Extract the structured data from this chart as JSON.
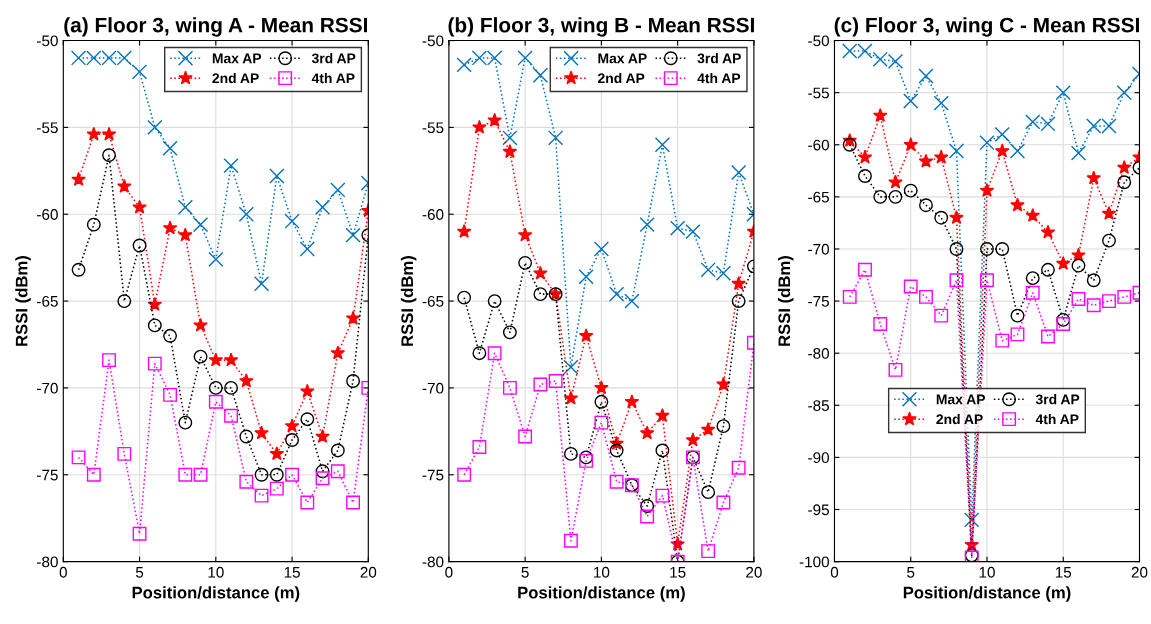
{
  "chart_data": [
    {
      "type": "line",
      "title": "(a) Floor 3, wing A - Mean RSSI",
      "xlabel": "Position/distance (m)",
      "ylabel": "RSSI (dBm)",
      "x": [
        1,
        2,
        3,
        4,
        5,
        6,
        7,
        8,
        9,
        10,
        11,
        12,
        13,
        14,
        15,
        16,
        17,
        18,
        19,
        20
      ],
      "xlim": [
        0,
        20
      ],
      "xticks": [
        0,
        5,
        10,
        15,
        20
      ],
      "ylim": [
        -80,
        -50
      ],
      "yticks": [
        -80,
        -75,
        -70,
        -65,
        -60,
        -55,
        -50
      ],
      "grid": true,
      "legend": "top right",
      "line_style": "dotted",
      "series": [
        {
          "name": "Max AP",
          "color": "#0072bd",
          "marker": "cross",
          "values": [
            -51,
            -51,
            -51,
            -51,
            -51.8,
            -55,
            -56.2,
            -59.6,
            -60.6,
            -62.6,
            -57.2,
            -60,
            -64,
            -57.8,
            -60.4,
            -62,
            -59.6,
            -58.6,
            -61.2,
            -58.2
          ]
        },
        {
          "name": "2nd AP",
          "color": "#ff0000",
          "marker": "star",
          "values": [
            -58,
            -55.4,
            -55.4,
            -58.4,
            -59.6,
            -65.2,
            -60.8,
            -61.2,
            -66.4,
            -68.4,
            -68.4,
            -69.6,
            -72.6,
            -73.8,
            -72.2,
            -70.2,
            -72.8,
            -68,
            -66,
            -59.8
          ]
        },
        {
          "name": "3rd AP",
          "color": "#000000",
          "marker": "circle",
          "values": [
            -63.2,
            -60.6,
            -56.6,
            -65,
            -61.8,
            -66.4,
            -67,
            -72,
            -68.2,
            -70,
            -70,
            -72.8,
            -75,
            -75,
            -73,
            -71.8,
            -74.8,
            -73.6,
            -69.6,
            -61.2
          ]
        },
        {
          "name": "4th AP",
          "color": "#ff00ff",
          "marker": "square",
          "values": [
            -74,
            -75,
            -68.4,
            -73.8,
            -78.4,
            -68.6,
            -70.4,
            -75,
            -75,
            -70.8,
            -71.6,
            -75.4,
            -76.2,
            -75.8,
            -75,
            -76.6,
            -75.2,
            -74.8,
            -76.6,
            -70
          ]
        }
      ]
    },
    {
      "type": "line",
      "title": "(b) Floor 3, wing B - Mean RSSI",
      "xlabel": "Position/distance (m)",
      "ylabel": "RSSI (dBm)",
      "x": [
        1,
        2,
        3,
        4,
        5,
        6,
        7,
        8,
        9,
        10,
        11,
        12,
        13,
        14,
        15,
        16,
        17,
        18,
        19,
        20
      ],
      "xlim": [
        0,
        20
      ],
      "xticks": [
        0,
        5,
        10,
        15,
        20
      ],
      "ylim": [
        -80,
        -50
      ],
      "yticks": [
        -80,
        -75,
        -70,
        -65,
        -60,
        -55,
        -50
      ],
      "grid": true,
      "legend": "top right",
      "line_style": "dotted",
      "series": [
        {
          "name": "Max AP",
          "color": "#0072bd",
          "marker": "cross",
          "values": [
            -51.4,
            -51,
            -51,
            -55.6,
            -51,
            -52,
            -55.6,
            -68.8,
            -63.6,
            -62,
            -64.6,
            -65,
            -60.6,
            -56,
            -60.8,
            -61,
            -63.2,
            -63.4,
            -57.6,
            -60
          ]
        },
        {
          "name": "2nd AP",
          "color": "#ff0000",
          "marker": "star",
          "values": [
            -61,
            -55,
            -54.6,
            -56.4,
            -61.2,
            -63.4,
            -64.6,
            -70.6,
            -67,
            -70,
            -73.2,
            -70.8,
            -72.6,
            -71.6,
            -79,
            -73,
            -72.4,
            -69.8,
            -64,
            -61
          ]
        },
        {
          "name": "3rd AP",
          "color": "#000000",
          "marker": "circle",
          "values": [
            -64.8,
            -68,
            -65,
            -66.8,
            -62.8,
            -64.6,
            -64.6,
            -73.8,
            -74,
            -70.8,
            -73.6,
            -75.6,
            -76.8,
            -73.6,
            -80,
            -74,
            -76,
            -72.2,
            -65,
            -63
          ]
        },
        {
          "name": "4th AP",
          "color": "#ff00ff",
          "marker": "square",
          "values": [
            -75,
            -73.4,
            -68,
            -70,
            -72.8,
            -69.8,
            -69.6,
            -78.8,
            -74.2,
            -72,
            -75.4,
            -75.6,
            -77.4,
            -76.2,
            -80,
            -74,
            -79.4,
            -76.6,
            -74.6,
            -67.4
          ]
        }
      ]
    },
    {
      "type": "line",
      "title": "(c) Floor 3, wing C - Mean RSSI",
      "xlabel": "Position/distance (m)",
      "ylabel": "RSSI (dBm)",
      "x": [
        1,
        2,
        3,
        4,
        5,
        6,
        7,
        8,
        9,
        10,
        11,
        12,
        13,
        14,
        15,
        16,
        17,
        18,
        19,
        20
      ],
      "xlim": [
        0,
        20
      ],
      "xticks": [
        0,
        5,
        10,
        15,
        20
      ],
      "ylim": [
        -100,
        -50
      ],
      "yticks": [
        -100,
        -95,
        -90,
        -85,
        -80,
        -75,
        -70,
        -65,
        -60,
        -55,
        -50
      ],
      "grid": true,
      "legend": "center",
      "line_style": "dotted",
      "series": [
        {
          "name": "Max AP",
          "color": "#0072bd",
          "marker": "cross",
          "values": [
            -51,
            -51,
            -51.8,
            -52,
            -55.8,
            -53.4,
            -56,
            -60.6,
            -96,
            -59.8,
            -59,
            -60.6,
            -57.8,
            -58,
            -55,
            -60.8,
            -58.2,
            -58.2,
            -55,
            -53.2
          ]
        },
        {
          "name": "2nd AP",
          "color": "#ff0000",
          "marker": "star",
          "values": [
            -59.6,
            -61.2,
            -57.2,
            -63.6,
            -60,
            -61.6,
            -61.2,
            -67,
            -98.4,
            -64.4,
            -60.6,
            -65.8,
            -66.8,
            -68.4,
            -71.4,
            -70.6,
            -63.2,
            -66.6,
            -62.2,
            -61.2
          ]
        },
        {
          "name": "3rd AP",
          "color": "#000000",
          "marker": "circle",
          "values": [
            -60,
            -63,
            -65,
            -65,
            -64.4,
            -65.8,
            -67,
            -70,
            -99.4,
            -70,
            -70,
            -76.4,
            -72.8,
            -72,
            -76.8,
            -71.6,
            -73,
            -69.2,
            -63.6,
            -62.2
          ]
        },
        {
          "name": "4th AP",
          "color": "#ff00ff",
          "marker": "square",
          "values": [
            -74.6,
            -72,
            -77.2,
            -81.6,
            -73.6,
            -74.6,
            -76.4,
            -73,
            -99.6,
            -73,
            -78.8,
            -78.2,
            -74.2,
            -78.4,
            -77.2,
            -74.8,
            -75.4,
            -75,
            -74.6,
            -74.2
          ]
        }
      ]
    }
  ]
}
